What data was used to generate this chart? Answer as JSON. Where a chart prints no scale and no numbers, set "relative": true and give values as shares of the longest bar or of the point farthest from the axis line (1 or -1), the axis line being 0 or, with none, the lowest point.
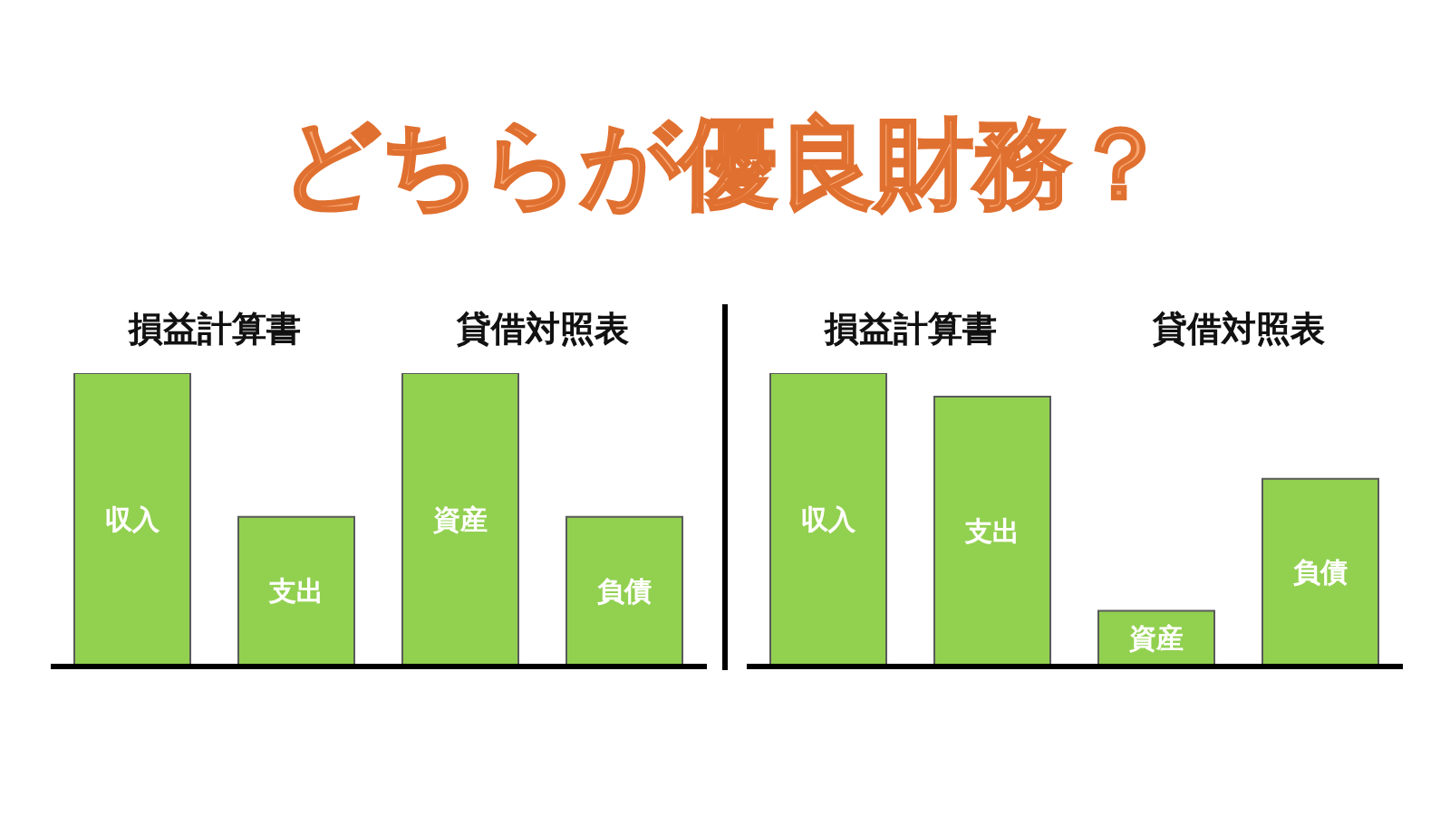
{
  "chart_data": [
    {
      "type": "other",
      "title": "どちらが優良財務？"
    },
    {
      "type": "bar",
      "relative": true,
      "categories": [
        "収入",
        "支出",
        "資産",
        "負債"
      ],
      "values": [
        1,
        0.51,
        1,
        0.51
      ],
      "color": "#92d050",
      "annotations": [
        "損益計算書",
        "貸借対照表"
      ]
    },
    {
      "type": "bar",
      "relative": true,
      "categories": [
        "収入",
        "支出",
        "資産",
        "負債"
      ],
      "values": [
        1,
        0.92,
        0.19,
        0.64
      ],
      "color": "#92d050",
      "annotations": [
        "損益計算書",
        "貸借対照表"
      ]
    }
  ]
}
